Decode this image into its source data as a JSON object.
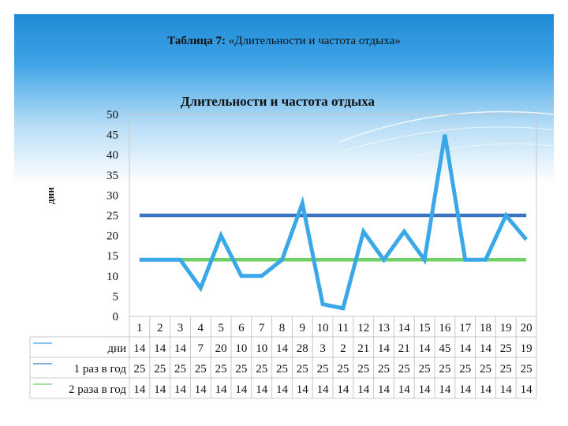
{
  "slide": {
    "title_label": "Таблица 7:",
    "title_text": "«Длительности и частота отдыха»"
  },
  "chart_data": {
    "type": "line",
    "title": "Длительности и частота отдыха",
    "ylabel": "дни",
    "xlabel": "",
    "ylim": [
      0,
      50
    ],
    "yticks": [
      0,
      5,
      10,
      15,
      20,
      25,
      30,
      35,
      40,
      45,
      50
    ],
    "categories": [
      "1",
      "2",
      "3",
      "4",
      "5",
      "6",
      "7",
      "8",
      "9",
      "10",
      "11",
      "12",
      "13",
      "14",
      "15",
      "16",
      "17",
      "18",
      "19",
      "20"
    ],
    "grid": false,
    "legend": "table-below",
    "series": [
      {
        "name": "дни",
        "color": "#3aa8e8",
        "values": [
          14,
          14,
          14,
          7,
          20,
          10,
          10,
          14,
          28,
          3,
          2,
          21,
          14,
          21,
          14,
          45,
          14,
          14,
          25,
          19
        ]
      },
      {
        "name": "1 раз в год",
        "color": "#3a74c0",
        "values": [
          25,
          25,
          25,
          25,
          25,
          25,
          25,
          25,
          25,
          25,
          25,
          25,
          25,
          25,
          25,
          25,
          25,
          25,
          25,
          25
        ]
      },
      {
        "name": "2 раза в год",
        "color": "#6fd06a",
        "values": [
          14,
          14,
          14,
          14,
          14,
          14,
          14,
          14,
          14,
          14,
          14,
          14,
          14,
          14,
          14,
          14,
          14,
          14,
          14,
          14
        ]
      }
    ]
  }
}
